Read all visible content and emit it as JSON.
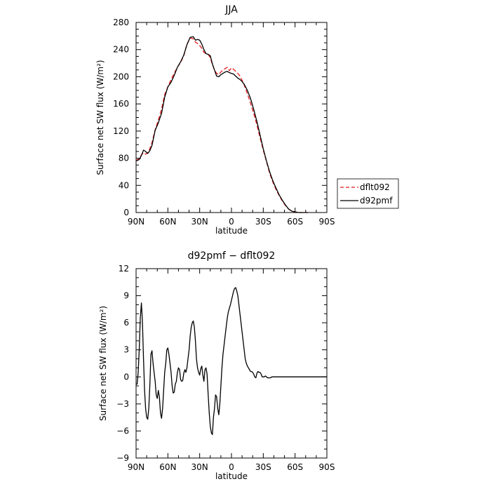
{
  "chart_data": [
    {
      "type": "line",
      "title": "JJA",
      "xlabel": "latitude",
      "ylabel": "Surface net SW flux (W/m²)",
      "xlim": [
        90,
        -90
      ],
      "ylim": [
        0,
        280
      ],
      "xticks": [
        90,
        60,
        30,
        0,
        -30,
        -60,
        -90
      ],
      "xtick_labels": [
        "90N",
        "60N",
        "30N",
        "0",
        "30S",
        "60S",
        "90S"
      ],
      "yticks": [
        0,
        40,
        80,
        120,
        160,
        200,
        240,
        280
      ],
      "ytick_labels": [
        "0",
        "40",
        "80",
        "120",
        "160",
        "200",
        "240",
        "280"
      ],
      "grid": false,
      "legend_position": "outside-right",
      "series": [
        {
          "name": "dflt092",
          "color": "#e41a1c",
          "dash": "dashed",
          "x": [
            90,
            87,
            85,
            83,
            81,
            79,
            77,
            75,
            72,
            69,
            66,
            63,
            60,
            57,
            54,
            51,
            48,
            45,
            42,
            39,
            36,
            34,
            32,
            30,
            28,
            26,
            24,
            22,
            20,
            18,
            16,
            14,
            12,
            10,
            8,
            6,
            4,
            2,
            0,
            -2,
            -4,
            -6,
            -8,
            -10,
            -12,
            -15,
            -18,
            -21,
            -24,
            -27,
            -30,
            -33,
            -36,
            -39,
            -42,
            -45,
            -48,
            -51,
            -54,
            -57,
            -60,
            -63,
            -66,
            -69,
            -72
          ],
          "y": [
            77,
            79,
            85,
            88,
            86,
            88,
            94,
            103,
            122,
            136,
            152,
            174,
            185,
            196,
            205,
            214,
            221,
            231,
            248,
            257,
            256,
            251,
            249,
            246,
            242,
            236,
            234,
            233,
            228,
            218,
            210,
            205,
            203,
            207,
            210,
            212,
            214,
            209,
            213,
            211,
            208,
            205,
            201,
            195,
            188,
            175,
            161,
            146,
            129,
            110,
            92,
            75,
            58,
            45,
            34,
            25,
            17,
            10,
            5,
            2,
            1,
            0,
            0,
            0,
            0
          ]
        },
        {
          "name": "d92pmf",
          "color": "#000000",
          "dash": "solid",
          "x": [
            90,
            87,
            85,
            83,
            81,
            79,
            77,
            75,
            72,
            69,
            66,
            63,
            60,
            57,
            54,
            51,
            48,
            45,
            42,
            39,
            36,
            34,
            32,
            30,
            28,
            26,
            24,
            22,
            20,
            18,
            16,
            14,
            12,
            10,
            8,
            6,
            4,
            2,
            0,
            -2,
            -4,
            -6,
            -8,
            -10,
            -12,
            -15,
            -18,
            -21,
            -24,
            -27,
            -30,
            -33,
            -36,
            -39,
            -42,
            -45,
            -48,
            -51,
            -54,
            -57,
            -60,
            -63,
            -66,
            -69,
            -72
          ],
          "y": [
            76,
            78,
            84,
            92,
            90,
            87,
            91,
            99,
            121,
            132,
            146,
            170,
            185,
            192,
            202,
            214,
            222,
            232,
            247,
            258,
            259,
            254,
            255,
            254,
            248,
            240,
            234,
            233,
            231,
            219,
            210,
            201,
            200,
            203,
            205,
            207,
            208,
            206,
            205,
            204,
            201,
            198,
            196,
            193,
            189,
            180,
            168,
            152,
            134,
            114,
            94,
            76,
            60,
            47,
            36,
            26,
            18,
            11,
            5,
            2,
            1,
            0,
            0,
            0,
            0
          ]
        }
      ]
    },
    {
      "type": "line",
      "title": "d92pmf − dflt092",
      "xlabel": "latitude",
      "ylabel": "Surface net SW flux (W/m²)",
      "xlim": [
        90,
        -90
      ],
      "ylim": [
        -9,
        12
      ],
      "xticks": [
        90,
        60,
        30,
        0,
        -30,
        -60,
        -90
      ],
      "xtick_labels": [
        "90N",
        "60N",
        "30N",
        "0",
        "30S",
        "60S",
        "90S"
      ],
      "yticks": [
        -9,
        -6,
        -3,
        0,
        3,
        6,
        9,
        12
      ],
      "ytick_labels": [
        "−9",
        "−6",
        "−3",
        "0",
        "3",
        "6",
        "9",
        "12"
      ],
      "grid": false,
      "series": [
        {
          "color": "#000000",
          "dash": "solid",
          "x": [
            90,
            89,
            88,
            87,
            86,
            85,
            84,
            83,
            82,
            81,
            80,
            79,
            78,
            77,
            76,
            75,
            74,
            73,
            72,
            71,
            70,
            69,
            68,
            67,
            66,
            65,
            64,
            63,
            62,
            61,
            60,
            59,
            58,
            57,
            56,
            55,
            54,
            53,
            52,
            51,
            50,
            49,
            48,
            47,
            46,
            45,
            44,
            43,
            42,
            41,
            40,
            39,
            38,
            37,
            36,
            35,
            34,
            33,
            32,
            31,
            30,
            29,
            28,
            27,
            26,
            25,
            24,
            23,
            22,
            21,
            20,
            19,
            18,
            17,
            16,
            15,
            14,
            13,
            12,
            11,
            10,
            9,
            8,
            7,
            6,
            5,
            4,
            3,
            2,
            1,
            0,
            -1,
            -2,
            -3,
            -4,
            -5,
            -6,
            -7,
            -8,
            -9,
            -10,
            -11,
            -12,
            -13,
            -14,
            -15,
            -16,
            -17,
            -18,
            -19,
            -20,
            -21,
            -22,
            -23,
            -24,
            -25,
            -26,
            -27,
            -28,
            -29,
            -30,
            -31,
            -32,
            -33,
            -34,
            -35,
            -36,
            -37,
            -38,
            -39,
            -40,
            -41,
            -42,
            -43,
            -44,
            -45,
            -46,
            -47,
            -48,
            -49,
            -50,
            -51,
            -52,
            -53,
            -54,
            -55,
            -56,
            -57,
            -58,
            -59,
            -60,
            -61,
            -62,
            -63,
            -64,
            -65,
            -66,
            -67,
            -68,
            -69,
            -70,
            -75,
            -80,
            -85,
            -90
          ],
          "y": [
            -0.8,
            -0.8,
            0.5,
            3.0,
            6.5,
            8.2,
            6.0,
            2.0,
            -1.5,
            -3.5,
            -4.5,
            -4.7,
            -3.5,
            -1.0,
            2.5,
            2.9,
            1.5,
            0.5,
            -0.5,
            -2.0,
            -2.4,
            -1.5,
            -2.2,
            -4.0,
            -4.6,
            -3.5,
            -1.5,
            0.5,
            1.5,
            3.0,
            3.2,
            2.5,
            1.5,
            0.5,
            -1.0,
            -1.8,
            -1.7,
            -0.8,
            -0.5,
            0.5,
            1.0,
            0.8,
            -0.3,
            -0.5,
            -0.4,
            0.4,
            0.8,
            0.5,
            1.0,
            2.0,
            3.0,
            4.5,
            5.5,
            6.0,
            6.2,
            5.5,
            4.0,
            2.0,
            1.0,
            0.5,
            0.2,
            0.9,
            1.2,
            0.2,
            -0.5,
            0.8,
            1.0,
            0.3,
            -2.0,
            -4.0,
            -5.5,
            -6.2,
            -6.4,
            -4.5,
            -3.5,
            -2.0,
            -2.2,
            -3.5,
            -4.2,
            -3.0,
            -1.0,
            1.0,
            2.5,
            3.5,
            4.5,
            5.5,
            6.5,
            7.2,
            7.6,
            8.0,
            8.5,
            9.0,
            9.5,
            9.8,
            9.9,
            9.5,
            9.0,
            8.0,
            7.0,
            6.0,
            5.0,
            4.0,
            3.0,
            2.0,
            1.5,
            1.2,
            1.0,
            0.8,
            0.6,
            0.6,
            0.5,
            0.3,
            0.0,
            -0.1,
            0.4,
            0.6,
            0.5,
            0.5,
            0.3,
            0.0,
            0.0,
            0.0,
            0.1,
            0.0,
            -0.1,
            -0.1,
            -0.1,
            -0.1,
            0.0,
            0.0,
            0.0,
            0.0,
            0.0,
            0.0,
            0.0,
            0.0,
            0.0,
            0.0,
            0.0,
            0.0,
            0.0,
            0.0,
            0.0,
            0.0,
            0.0,
            0.0,
            0.0,
            0.0,
            0.0,
            0.0,
            0.0,
            0.0,
            0.0,
            0.0,
            0.0,
            0.0,
            0.0,
            0.0,
            0.0,
            0.0,
            0.0,
            0.0,
            0.0,
            0.0,
            0.0
          ]
        }
      ]
    }
  ]
}
